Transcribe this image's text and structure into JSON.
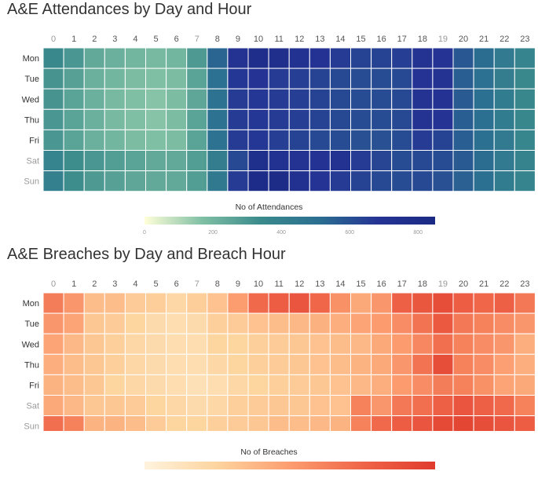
{
  "charts": [
    {
      "title": "A&E Attendances by Day and Hour",
      "legend_title": "No of Attendances"
    },
    {
      "title": "A&E Breaches by Day and Breach Hour",
      "legend_title": "No of Breaches"
    }
  ],
  "chart_data": [
    {
      "type": "heatmap",
      "title": "A&E Attendances by Day and Hour",
      "x": [
        "0",
        "1",
        "2",
        "3",
        "4",
        "5",
        "6",
        "7",
        "8",
        "9",
        "10",
        "11",
        "12",
        "13",
        "14",
        "15",
        "16",
        "17",
        "18",
        "19",
        "20",
        "21",
        "22",
        "23"
      ],
      "y": [
        "Mon",
        "Tue",
        "Wed",
        "Thu",
        "Fri",
        "Sat",
        "Sun"
      ],
      "values": [
        [
          350,
          300,
          240,
          220,
          200,
          190,
          200,
          290,
          540,
          700,
          790,
          760,
          720,
          690,
          660,
          640,
          640,
          650,
          700,
          680,
          580,
          520,
          440,
          380
        ],
        [
          310,
          270,
          220,
          200,
          180,
          170,
          180,
          260,
          500,
          670,
          680,
          660,
          650,
          640,
          620,
          610,
          610,
          620,
          680,
          700,
          560,
          500,
          420,
          350
        ],
        [
          310,
          260,
          220,
          190,
          170,
          160,
          180,
          250,
          490,
          660,
          670,
          660,
          650,
          640,
          620,
          610,
          610,
          620,
          700,
          690,
          570,
          510,
          430,
          360
        ],
        [
          300,
          260,
          220,
          190,
          170,
          160,
          180,
          260,
          490,
          660,
          670,
          660,
          650,
          640,
          620,
          610,
          610,
          620,
          700,
          680,
          560,
          510,
          430,
          360
        ],
        [
          300,
          260,
          220,
          200,
          180,
          170,
          180,
          260,
          490,
          660,
          670,
          650,
          640,
          620,
          610,
          600,
          600,
          610,
          660,
          640,
          560,
          510,
          440,
          370
        ],
        [
          380,
          330,
          300,
          280,
          260,
          240,
          240,
          280,
          420,
          620,
          770,
          720,
          700,
          690,
          710,
          660,
          630,
          610,
          620,
          610,
          570,
          520,
          440,
          390
        ],
        [
          400,
          330,
          290,
          270,
          250,
          240,
          240,
          280,
          450,
          660,
          810,
          820,
          730,
          680,
          660,
          640,
          620,
          610,
          620,
          600,
          550,
          510,
          430,
          380
        ]
      ],
      "color_scale": [
        "#ffffd9",
        "#7fbfa4",
        "#3a8a8c",
        "#2b6f91",
        "#253494",
        "#1a2a84"
      ],
      "legend": {
        "title": "No of Attendances",
        "ticks": [
          0,
          200,
          400,
          600,
          800
        ],
        "range": [
          0,
          850
        ]
      }
    },
    {
      "type": "heatmap",
      "title": "A&E Breaches by Day and Breach Hour",
      "x": [
        "0",
        "1",
        "2",
        "3",
        "4",
        "5",
        "6",
        "7",
        "8",
        "9",
        "10",
        "11",
        "12",
        "13",
        "14",
        "15",
        "16",
        "17",
        "18",
        "19",
        "20",
        "21",
        "22",
        "23"
      ],
      "y": [
        "Mon",
        "Tue",
        "Wed",
        "Thu",
        "Fri",
        "Sat",
        "Sun"
      ],
      "values": [
        [
          58,
          48,
          32,
          32,
          26,
          25,
          20,
          25,
          30,
          45,
          66,
          72,
          76,
          67,
          50,
          40,
          48,
          70,
          75,
          80,
          72,
          67,
          70,
          60
        ],
        [
          48,
          42,
          28,
          26,
          22,
          18,
          16,
          18,
          24,
          26,
          30,
          32,
          34,
          37,
          38,
          42,
          46,
          52,
          62,
          74,
          60,
          56,
          52,
          48
        ],
        [
          42,
          34,
          28,
          24,
          20,
          18,
          16,
          16,
          22,
          22,
          24,
          26,
          28,
          30,
          32,
          34,
          40,
          46,
          54,
          64,
          56,
          52,
          48,
          38
        ],
        [
          38,
          32,
          28,
          24,
          20,
          18,
          16,
          16,
          20,
          22,
          24,
          26,
          28,
          30,
          32,
          36,
          40,
          48,
          62,
          80,
          56,
          52,
          44,
          38
        ],
        [
          36,
          32,
          28,
          22,
          20,
          18,
          16,
          14,
          16,
          20,
          22,
          24,
          26,
          28,
          30,
          34,
          38,
          46,
          52,
          58,
          56,
          50,
          42,
          40
        ],
        [
          40,
          34,
          28,
          28,
          26,
          22,
          20,
          18,
          20,
          24,
          26,
          28,
          28,
          30,
          30,
          56,
          48,
          60,
          64,
          70,
          76,
          70,
          66,
          56
        ],
        [
          64,
          56,
          36,
          36,
          32,
          26,
          22,
          22,
          24,
          26,
          28,
          32,
          32,
          34,
          36,
          56,
          66,
          72,
          76,
          82,
          84,
          80,
          76,
          72
        ]
      ],
      "color_scale": [
        "#fff3de",
        "#fdd49e",
        "#fc9d70",
        "#ef6548",
        "#e03b2d"
      ],
      "legend": {
        "title": "No of Breaches",
        "range": [
          0,
          90
        ]
      }
    }
  ]
}
